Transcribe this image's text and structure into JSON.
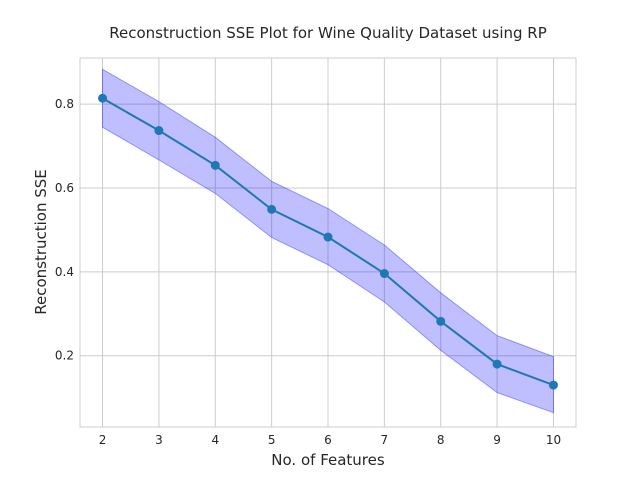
{
  "chart_data": {
    "type": "line",
    "title": "Reconstruction SSE Plot for Wine Quality Dataset using RP",
    "xlabel": "No. of Features",
    "ylabel": "Reconstruction SSE",
    "x": [
      2,
      3,
      4,
      5,
      6,
      7,
      8,
      9,
      10
    ],
    "xlim": [
      1.6,
      10.4
    ],
    "ylim": [
      0.03,
      0.91
    ],
    "xticks": [
      2,
      3,
      4,
      5,
      6,
      7,
      8,
      9,
      10
    ],
    "yticks": [
      0.2,
      0.4,
      0.6,
      0.8
    ],
    "grid": true,
    "series": [
      {
        "values": [
          0.814,
          0.737,
          0.654,
          0.549,
          0.483,
          0.396,
          0.282,
          0.18,
          0.13
        ],
        "lower": [
          0.745,
          0.667,
          0.587,
          0.482,
          0.417,
          0.328,
          0.213,
          0.112,
          0.064
        ],
        "upper": [
          0.883,
          0.806,
          0.721,
          0.616,
          0.551,
          0.464,
          0.35,
          0.248,
          0.198
        ],
        "color": "#1f77b4",
        "band_color": "#0000ff"
      }
    ]
  }
}
